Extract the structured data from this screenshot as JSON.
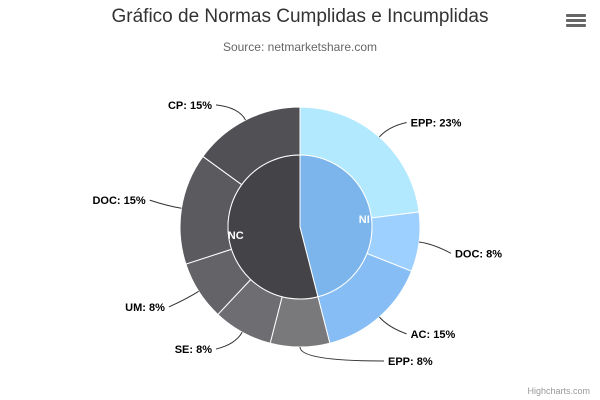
{
  "title": "Gráfico de Normas Cumplidas e Incumplidas",
  "subtitle": "Source: netmarketshare.com",
  "credits": "Highcharts.com",
  "menu_icon": "hamburger-menu-icon",
  "chart_data": {
    "type": "donut",
    "inner": [
      {
        "name": "NI",
        "value": 46,
        "color": "#7cb5ec"
      },
      {
        "name": "NC",
        "value": 54,
        "color": "#434348"
      }
    ],
    "outer": [
      {
        "name": "EPP",
        "label": "EPP: 23%",
        "value": 23,
        "parent": "NI",
        "color": "#b3e9ff"
      },
      {
        "name": "DOC",
        "label": "DOC: 8%",
        "value": 8,
        "parent": "NI",
        "color": "#9dcfff"
      },
      {
        "name": "AC",
        "label": "AC: 15%",
        "value": 15,
        "parent": "NI",
        "color": "#86bdf4"
      },
      {
        "name": "EPP",
        "label": "EPP: 8%",
        "value": 8,
        "parent": "NC",
        "color": "#79797c"
      },
      {
        "name": "SE",
        "label": "SE: 8%",
        "value": 8,
        "parent": "NC",
        "color": "#6e6e72"
      },
      {
        "name": "UM",
        "label": "UM: 8%",
        "value": 8,
        "parent": "NC",
        "color": "#646468"
      },
      {
        "name": "DOC",
        "label": "DOC: 15%",
        "value": 15,
        "parent": "NC",
        "color": "#5a5a5f"
      },
      {
        "name": "CP",
        "label": "CP: 15%",
        "value": 15,
        "parent": "NC",
        "color": "#505055"
      }
    ]
  }
}
